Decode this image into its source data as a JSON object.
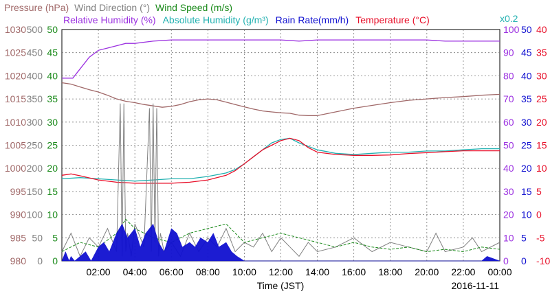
{
  "chart_data": {
    "type": "line",
    "date": "2016-11-11",
    "xlabel": "Time (JST)",
    "x_ticks": [
      "02:00",
      "04:00",
      "06:00",
      "08:00",
      "10:00",
      "12:00",
      "14:00",
      "16:00",
      "18:00",
      "20:00",
      "22:00",
      "00:00"
    ],
    "x_range_hours": [
      0,
      24
    ],
    "grid": true,
    "legend_row1": [
      {
        "name": "Pressure (hPa)",
        "color": "#a06868"
      },
      {
        "name": "Wind Direction (°)",
        "color": "#808080"
      },
      {
        "name": "Wind Speed (m/s)",
        "color": "#1a8a1a"
      }
    ],
    "legend_row2": [
      {
        "name": "Relative Humidity (%)",
        "color": "#9b30e0"
      },
      {
        "name": "Absolute Humidity (g/m³)",
        "color": "#20b0b0"
      },
      {
        "name": "Rain Rate(mm/h)",
        "color": "#1010d0"
      },
      {
        "name": "Temperature (°C)",
        "color": "#e8102a"
      }
    ],
    "abs_humidity_scale_note": "x0.2",
    "axes": {
      "pressure": {
        "color": "#a06868",
        "ticks": [
          980,
          985,
          990,
          995,
          1000,
          1005,
          1010,
          1015,
          1020,
          1025,
          1030
        ],
        "range": [
          980,
          1030
        ]
      },
      "wind_direction": {
        "color": "#808080",
        "ticks": [
          0,
          50,
          100,
          150,
          200,
          250,
          300,
          350,
          400,
          450,
          500
        ],
        "range": [
          0,
          500
        ]
      },
      "wind_speed": {
        "color": "#1a8a1a",
        "ticks": [
          0,
          5,
          10,
          15,
          20,
          25,
          30,
          35,
          40,
          45,
          50
        ],
        "range": [
          0,
          50
        ]
      },
      "humidity": {
        "color": "#9b30e0",
        "ticks": [
          0,
          10,
          20,
          30,
          40,
          50,
          60,
          70,
          80,
          90,
          100
        ],
        "range": [
          0,
          100
        ]
      },
      "rain_rate": {
        "color": "#1010d0",
        "ticks": [
          0,
          5,
          10,
          15,
          20,
          25,
          30,
          35,
          40,
          45,
          50
        ],
        "range": [
          0,
          50
        ]
      },
      "temperature": {
        "color": "#e8102a",
        "ticks": [
          -10,
          -5,
          0,
          5,
          10,
          15,
          20,
          25,
          30,
          35,
          40
        ],
        "range": [
          -10,
          40
        ]
      }
    },
    "series": [
      {
        "name": "Pressure",
        "axis": "pressure",
        "color": "#a06868",
        "x": [
          0,
          0.5,
          1,
          1.5,
          2,
          2.5,
          3,
          3.5,
          4,
          4.5,
          5,
          5.5,
          6,
          6.5,
          7,
          7.5,
          8,
          8.5,
          9,
          9.5,
          10,
          10.5,
          11,
          11.5,
          12,
          12.5,
          13,
          13.5,
          14,
          15,
          16,
          17,
          18,
          19,
          20,
          21,
          22,
          23,
          24
        ],
        "y": [
          1018.5,
          1018.2,
          1017.6,
          1017.0,
          1016.5,
          1015.8,
          1015.0,
          1014.5,
          1014.2,
          1013.8,
          1013.5,
          1013.2,
          1013.4,
          1013.8,
          1014.4,
          1014.8,
          1015.0,
          1014.8,
          1014.3,
          1013.8,
          1013.3,
          1012.8,
          1012.4,
          1012.2,
          1012.0,
          1011.9,
          1011.5,
          1011.4,
          1011.4,
          1012.2,
          1013.0,
          1013.6,
          1014.2,
          1014.7,
          1015.0,
          1015.3,
          1015.5,
          1015.8,
          1016.0
        ]
      },
      {
        "name": "Relative Humidity",
        "axis": "humidity",
        "color": "#9b30e0",
        "x": [
          0,
          0.6,
          1,
          1.5,
          2,
          2.5,
          3,
          3.5,
          4,
          5,
          6,
          7,
          8,
          9,
          10,
          11,
          12,
          13,
          14,
          15,
          16,
          17,
          18,
          19,
          20,
          21,
          22,
          23,
          24
        ],
        "y": [
          79,
          79,
          83,
          88,
          91,
          92,
          93,
          94,
          94,
          95,
          95.5,
          95.5,
          95.5,
          95.5,
          95.5,
          95.5,
          95.5,
          95,
          95.5,
          95.5,
          95.5,
          95.5,
          95.5,
          95.5,
          95.5,
          95,
          95,
          95,
          95
        ]
      },
      {
        "name": "Absolute Humidity",
        "axis": "humidity",
        "color": "#20b0b0",
        "x": [
          0,
          1,
          2,
          3,
          4,
          5,
          6,
          7,
          8,
          9,
          9.5,
          10,
          10.5,
          11,
          11.5,
          12,
          12.5,
          13,
          13.5,
          14,
          15,
          16,
          17,
          18,
          19,
          20,
          21,
          22,
          23,
          24
        ],
        "y": [
          35.5,
          36,
          35.5,
          35,
          34.5,
          35,
          35.5,
          35.5,
          36.5,
          38,
          39.5,
          42,
          45,
          48,
          51,
          52.5,
          53,
          51,
          49.5,
          48,
          46.5,
          46,
          46.5,
          47,
          47,
          47.5,
          47.5,
          48,
          48.5,
          48.5
        ]
      },
      {
        "name": "Temperature",
        "axis": "temperature",
        "color": "#e8102a",
        "x": [
          0,
          0.5,
          1,
          2,
          3,
          4,
          5,
          6,
          7,
          8,
          9,
          9.5,
          10,
          10.5,
          11,
          11.5,
          12,
          12.5,
          13,
          13.5,
          14,
          15,
          16,
          17,
          18,
          19,
          20,
          21,
          22,
          23,
          24
        ],
        "y": [
          8.5,
          8.8,
          8.4,
          7.5,
          7.0,
          6.8,
          6.8,
          6.8,
          7.0,
          7.5,
          8.5,
          9.5,
          11,
          12.5,
          14,
          15,
          16,
          16.5,
          16,
          14.5,
          13.5,
          13,
          12.8,
          12.8,
          12.9,
          13.2,
          13.4,
          13.6,
          13.8,
          13.8,
          13.8
        ]
      },
      {
        "name": "Wind Direction",
        "axis": "wind_direction",
        "color": "#808080",
        "x": [
          0,
          0.5,
          1,
          1.5,
          2,
          2.5,
          3,
          3.2,
          3.3,
          3.4,
          3.5,
          3.6,
          3.8,
          4,
          4.5,
          4.8,
          4.9,
          5,
          5.1,
          5.2,
          5.3,
          5.4,
          5.6,
          6,
          6.5,
          7,
          7.5,
          8,
          8.5,
          9,
          9.5,
          10,
          10.5,
          11,
          11.5,
          12,
          12.5,
          13,
          13.5,
          14,
          15,
          16,
          17,
          18,
          19,
          20,
          20.5,
          21,
          22,
          22.5,
          23,
          24
        ],
        "y": [
          20,
          60,
          10,
          50,
          30,
          70,
          20,
          340,
          10,
          340,
          20,
          60,
          10,
          80,
          30,
          330,
          20,
          340,
          40,
          330,
          10,
          60,
          20,
          40,
          10,
          60,
          20,
          50,
          30,
          70,
          20,
          40,
          30,
          60,
          20,
          50,
          30,
          10,
          40,
          20,
          30,
          50,
          20,
          40,
          30,
          20,
          60,
          20,
          30,
          50,
          20,
          40
        ]
      },
      {
        "name": "Wind Speed",
        "axis": "wind_speed",
        "color": "#1a8a1a",
        "x": [
          0,
          1,
          2,
          3,
          3.5,
          4,
          5,
          6,
          7,
          8,
          9,
          10,
          11,
          12,
          13,
          14,
          15,
          16,
          17,
          18,
          19,
          20,
          21,
          22,
          23,
          24
        ],
        "y": [
          2,
          4,
          3,
          6,
          9,
          7,
          5,
          4,
          6,
          7,
          8,
          4,
          5,
          6,
          5,
          4,
          3,
          4,
          3,
          2.5,
          3,
          2,
          2.5,
          2,
          3,
          2.5
        ]
      },
      {
        "name": "Rain Rate",
        "axis": "rain_rate",
        "color": "#1010d0",
        "x": [
          0,
          0.2,
          0.4,
          0.5,
          0.7,
          1,
          1.3,
          1.6,
          2,
          2.3,
          2.6,
          3,
          3.3,
          3.6,
          4,
          4.3,
          4.6,
          5,
          5.3,
          5.6,
          6,
          6.3,
          6.6,
          7,
          7.3,
          7.6,
          8,
          8.3,
          8.6,
          9,
          9.3,
          9.6,
          10,
          10.2,
          20.5,
          21,
          22,
          23,
          23.3,
          24
        ],
        "y": [
          0,
          2,
          0,
          1,
          0,
          1,
          2,
          0,
          3,
          4,
          2,
          6,
          8,
          5,
          7,
          3,
          6,
          8,
          4,
          2,
          7,
          6,
          3,
          4,
          3,
          5,
          4,
          6,
          3,
          4,
          2,
          1,
          0,
          0,
          0,
          0,
          0,
          0,
          1,
          0
        ]
      }
    ]
  }
}
